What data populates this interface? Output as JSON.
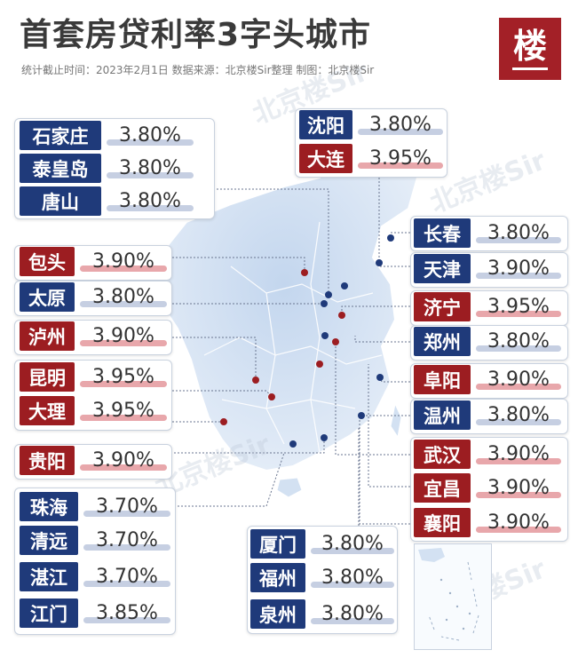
{
  "header": {
    "title": "首套房贷利率3字头城市",
    "subtitle": "统计截止时间：2023年2月1日   数据来源：北京楼Sir整理   制图：北京楼Sir",
    "logo_char": "楼"
  },
  "watermark": "北京楼Sir",
  "colors": {
    "blue": "#1f3a7a",
    "red": "#9c1d21",
    "blue_underline": "#c6cfe2",
    "red_underline": "#e8a7ab"
  },
  "cities": [
    {
      "name": "石家庄",
      "rate": "3.80%",
      "color": "blue"
    },
    {
      "name": "泰皇岛",
      "rate": "3.80%",
      "color": "blue"
    },
    {
      "name": "唐山",
      "rate": "3.80%",
      "color": "blue"
    },
    {
      "name": "沈阳",
      "rate": "3.80%",
      "color": "blue"
    },
    {
      "name": "大连",
      "rate": "3.95%",
      "color": "red"
    },
    {
      "name": "包头",
      "rate": "3.90%",
      "color": "red"
    },
    {
      "name": "太原",
      "rate": "3.80%",
      "color": "blue"
    },
    {
      "name": "泸州",
      "rate": "3.90%",
      "color": "red"
    },
    {
      "name": "昆明",
      "rate": "3.95%",
      "color": "red"
    },
    {
      "name": "大理",
      "rate": "3.95%",
      "color": "red"
    },
    {
      "name": "贵阳",
      "rate": "3.90%",
      "color": "red"
    },
    {
      "name": "珠海",
      "rate": "3.70%",
      "color": "blue"
    },
    {
      "name": "清远",
      "rate": "3.70%",
      "color": "blue"
    },
    {
      "name": "湛江",
      "rate": "3.70%",
      "color": "blue"
    },
    {
      "name": "江门",
      "rate": "3.85%",
      "color": "blue"
    },
    {
      "name": "长春",
      "rate": "3.80%",
      "color": "blue"
    },
    {
      "name": "天津",
      "rate": "3.90%",
      "color": "blue"
    },
    {
      "name": "济宁",
      "rate": "3.95%",
      "color": "red"
    },
    {
      "name": "郑州",
      "rate": "3.80%",
      "color": "blue"
    },
    {
      "name": "阜阳",
      "rate": "3.90%",
      "color": "red"
    },
    {
      "name": "温州",
      "rate": "3.80%",
      "color": "blue"
    },
    {
      "name": "武汉",
      "rate": "3.90%",
      "color": "red"
    },
    {
      "name": "宜昌",
      "rate": "3.90%",
      "color": "red"
    },
    {
      "name": "襄阳",
      "rate": "3.90%",
      "color": "red"
    },
    {
      "name": "厦门",
      "rate": "3.80%",
      "color": "blue"
    },
    {
      "name": "福州",
      "rate": "3.80%",
      "color": "blue"
    },
    {
      "name": "泉州",
      "rate": "3.80%",
      "color": "blue"
    }
  ]
}
